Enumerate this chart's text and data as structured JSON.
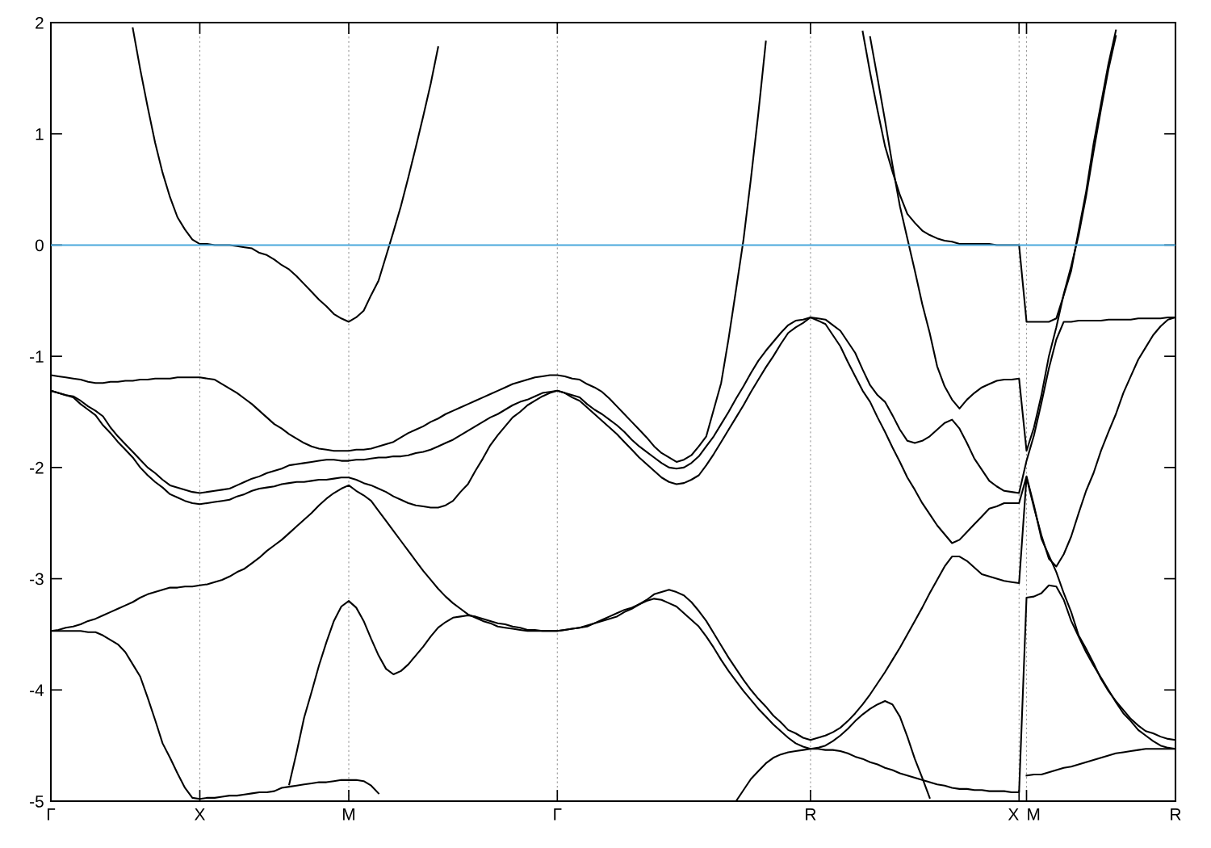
{
  "chart_data": {
    "type": "line",
    "ylim": [
      -5,
      2
    ],
    "categories": [
      "Γ",
      null,
      null,
      null,
      null,
      null,
      null,
      null,
      null,
      null,
      null,
      null,
      null,
      null,
      null,
      null,
      null,
      null,
      null,
      null,
      "X",
      null,
      null,
      null,
      null,
      null,
      null,
      null,
      null,
      null,
      null,
      null,
      null,
      null,
      null,
      null,
      null,
      null,
      null,
      null,
      "M",
      null,
      null,
      null,
      null,
      null,
      null,
      null,
      null,
      null,
      null,
      null,
      null,
      null,
      null,
      null,
      null,
      null,
      null,
      null,
      null,
      null,
      null,
      null,
      null,
      null,
      null,
      null,
      "Γ",
      null,
      null,
      null,
      null,
      null,
      null,
      null,
      null,
      null,
      null,
      null,
      null,
      null,
      null,
      null,
      null,
      null,
      null,
      null,
      null,
      null,
      null,
      null,
      null,
      null,
      null,
      null,
      null,
      null,
      null,
      null,
      null,
      null,
      "R",
      null,
      null,
      null,
      null,
      null,
      null,
      null,
      null,
      null,
      null,
      null,
      null,
      null,
      null,
      null,
      null,
      null,
      null,
      null,
      null,
      null,
      null,
      null,
      null,
      null,
      null,
      null,
      "X",
      "M",
      null,
      null,
      null,
      null,
      null,
      null,
      null,
      null,
      null,
      null,
      null,
      null,
      null,
      null,
      null,
      null,
      null,
      null,
      null,
      "R"
    ],
    "yticks": [
      -5,
      -4,
      -3,
      -2,
      -1,
      0,
      1,
      2
    ],
    "grid": "x",
    "line_style": "solid",
    "ref_lines": [
      {
        "axis": "y",
        "value": 0,
        "color": "#4aa8dc"
      }
    ],
    "series": [
      {
        "color": "#000000",
        "values": [
          null,
          null,
          null,
          null,
          null,
          null,
          null,
          null,
          null,
          null,
          null,
          1.95,
          1.58,
          1.24,
          0.92,
          0.65,
          0.43,
          0.25,
          0.14,
          0.05,
          0.01,
          0.01,
          0.0,
          0.0,
          0.0,
          -0.01,
          -0.02,
          -0.03,
          -0.07,
          -0.09,
          -0.13,
          -0.18,
          -0.22,
          -0.28,
          -0.35,
          -0.42,
          -0.49,
          -0.55,
          -0.62,
          -0.66,
          -0.69,
          -0.65,
          -0.59,
          -0.45,
          -0.32,
          -0.1,
          0.12,
          0.35,
          0.61,
          0.88,
          1.16,
          1.45,
          1.78,
          null,
          null,
          null,
          null,
          null,
          null,
          null,
          null,
          null,
          null,
          null,
          null,
          null,
          null,
          null,
          null,
          null,
          null,
          null,
          null,
          null,
          null,
          null,
          null,
          null,
          null,
          null,
          null,
          null,
          null,
          null,
          null,
          null,
          null,
          null,
          null,
          null,
          null,
          null,
          null,
          null,
          null,
          null,
          null,
          null,
          null,
          null,
          null,
          null,
          null,
          null,
          null,
          null,
          null,
          null,
          null,
          null,
          null,
          null,
          null,
          null,
          null,
          null,
          null,
          null,
          null,
          null,
          null,
          null,
          null,
          null,
          null,
          null,
          null,
          null,
          null,
          null,
          null,
          null,
          null,
          null,
          null,
          null,
          null,
          null,
          null,
          null,
          null,
          null,
          null,
          null,
          null,
          null,
          null,
          null,
          null,
          null,
          null,
          null
        ]
      },
      {
        "color": "#000000",
        "values": [
          -1.17,
          -1.18,
          -1.19,
          -1.2,
          -1.21,
          -1.23,
          -1.24,
          -1.24,
          -1.23,
          -1.23,
          -1.22,
          -1.22,
          -1.21,
          -1.21,
          -1.2,
          -1.2,
          -1.2,
          -1.19,
          -1.19,
          -1.19,
          -1.19,
          -1.2,
          -1.21,
          -1.25,
          -1.29,
          -1.33,
          -1.38,
          -1.43,
          -1.49,
          -1.55,
          -1.61,
          -1.65,
          -1.7,
          -1.74,
          -1.78,
          -1.81,
          -1.83,
          -1.84,
          -1.85,
          -1.85,
          -1.85,
          -1.84,
          -1.84,
          -1.83,
          -1.81,
          -1.79,
          -1.77,
          -1.73,
          -1.69,
          -1.66,
          -1.63,
          -1.59,
          -1.56,
          -1.52,
          -1.49,
          -1.46,
          -1.43,
          -1.4,
          -1.37,
          -1.34,
          -1.31,
          -1.28,
          -1.25,
          -1.23,
          -1.21,
          -1.19,
          -1.18,
          -1.17,
          -1.17,
          -1.18,
          -1.2,
          -1.21,
          -1.25,
          -1.28,
          -1.32,
          -1.38,
          -1.45,
          -1.52,
          -1.59,
          -1.66,
          -1.73,
          -1.81,
          -1.87,
          -1.91,
          -1.95,
          -1.93,
          -1.89,
          -1.81,
          -1.72,
          -1.48,
          -1.24,
          -0.84,
          -0.4,
          0.05,
          0.6,
          1.19,
          1.83,
          null,
          null,
          null,
          null,
          null,
          null,
          null,
          null,
          null,
          null,
          null,
          null,
          null,
          null,
          null,
          null,
          null,
          null,
          null,
          null,
          null,
          null,
          null,
          null,
          null,
          null,
          null,
          null,
          null,
          null,
          null,
          null,
          null,
          null,
          null,
          null,
          null,
          null,
          null,
          null,
          null,
          null,
          null,
          null,
          null,
          null,
          null,
          null,
          null,
          null,
          null,
          null,
          null,
          null,
          null
        ]
      },
      {
        "color": "#000000",
        "values": [
          -1.31,
          -1.33,
          -1.35,
          -1.36,
          -1.4,
          -1.45,
          -1.49,
          -1.54,
          -1.64,
          -1.72,
          -1.79,
          -1.86,
          -1.93,
          -2.0,
          -2.05,
          -2.11,
          -2.16,
          -2.18,
          -2.2,
          -2.22,
          -2.23,
          -2.22,
          -2.21,
          -2.2,
          -2.19,
          -2.16,
          -2.13,
          -2.1,
          -2.08,
          -2.05,
          -2.03,
          -2.01,
          -1.98,
          -1.97,
          -1.96,
          -1.95,
          -1.94,
          -1.93,
          -1.93,
          -1.94,
          -1.94,
          -1.93,
          -1.93,
          -1.92,
          -1.91,
          -1.91,
          -1.9,
          -1.9,
          -1.89,
          -1.87,
          -1.86,
          -1.84,
          -1.81,
          -1.78,
          -1.75,
          -1.71,
          -1.67,
          -1.63,
          -1.59,
          -1.55,
          -1.52,
          -1.48,
          -1.44,
          -1.41,
          -1.39,
          -1.36,
          -1.33,
          -1.32,
          -1.31,
          -1.33,
          -1.35,
          -1.37,
          -1.43,
          -1.48,
          -1.52,
          -1.57,
          -1.62,
          -1.68,
          -1.75,
          -1.81,
          -1.86,
          -1.91,
          -1.96,
          -2.0,
          -2.01,
          -2.0,
          -1.96,
          -1.9,
          -1.81,
          -1.72,
          -1.61,
          -1.5,
          -1.38,
          -1.27,
          -1.15,
          -1.04,
          -0.95,
          -0.87,
          -0.79,
          -0.72,
          -0.68,
          -0.67,
          -0.65,
          -0.66,
          -0.67,
          -0.72,
          -0.77,
          -0.87,
          -0.97,
          -1.12,
          -1.26,
          -1.35,
          -1.41,
          -1.53,
          -1.66,
          -1.76,
          -1.78,
          -1.76,
          -1.72,
          -1.66,
          -1.6,
          -1.57,
          -1.65,
          -1.78,
          -1.92,
          -2.02,
          -2.12,
          -2.17,
          -2.21,
          -2.22,
          -2.23,
          -1.94,
          -1.71,
          -1.42,
          -1.11,
          -0.85,
          -0.69,
          -0.69,
          -0.68,
          -0.68,
          -0.68,
          -0.68,
          -0.67,
          -0.67,
          -0.67,
          -0.67,
          -0.66,
          -0.66,
          -0.66,
          -0.66,
          -0.65,
          -0.65
        ]
      },
      {
        "color": "#000000",
        "values": [
          -1.31,
          -1.33,
          -1.35,
          -1.37,
          -1.43,
          -1.48,
          -1.53,
          -1.62,
          -1.69,
          -1.77,
          -1.84,
          -1.91,
          -2.0,
          -2.07,
          -2.13,
          -2.18,
          -2.24,
          -2.27,
          -2.3,
          -2.32,
          -2.33,
          -2.32,
          -2.31,
          -2.3,
          -2.29,
          -2.26,
          -2.24,
          -2.21,
          -2.19,
          -2.18,
          -2.17,
          -2.15,
          -2.14,
          -2.13,
          -2.13,
          -2.12,
          -2.11,
          -2.11,
          -2.1,
          -2.09,
          -2.09,
          -2.11,
          -2.14,
          -2.16,
          -2.19,
          -2.22,
          -2.26,
          -2.29,
          -2.32,
          -2.34,
          -2.35,
          -2.36,
          -2.36,
          -2.34,
          -2.3,
          -2.22,
          -2.15,
          -2.03,
          -1.92,
          -1.8,
          -1.71,
          -1.63,
          -1.55,
          -1.5,
          -1.44,
          -1.4,
          -1.36,
          -1.33,
          -1.31,
          -1.33,
          -1.37,
          -1.4,
          -1.46,
          -1.52,
          -1.58,
          -1.64,
          -1.7,
          -1.77,
          -1.84,
          -1.91,
          -1.97,
          -2.03,
          -2.09,
          -2.13,
          -2.15,
          -2.14,
          -2.11,
          -2.07,
          -1.98,
          -1.88,
          -1.77,
          -1.66,
          -1.55,
          -1.44,
          -1.32,
          -1.21,
          -1.1,
          -1.0,
          -0.89,
          -0.79,
          -0.74,
          -0.7,
          -0.65,
          -0.68,
          -0.71,
          -0.81,
          -0.91,
          -1.05,
          -1.18,
          -1.31,
          -1.41,
          -1.55,
          -1.68,
          -1.82,
          -1.95,
          -2.09,
          -2.2,
          -2.32,
          -2.42,
          -2.52,
          -2.6,
          -2.68,
          -2.65,
          -2.58,
          -2.51,
          -2.44,
          -2.37,
          -2.35,
          -2.32,
          -2.32,
          -2.32,
          -2.08,
          -2.34,
          -2.64,
          -2.79,
          -2.94,
          -3.13,
          -3.3,
          -3.51,
          -3.63,
          -3.76,
          -3.9,
          -4.01,
          -4.1,
          -4.18,
          -4.26,
          -4.32,
          -4.37,
          -4.39,
          -4.42,
          -4.44,
          -4.45
        ]
      },
      {
        "color": "#000000",
        "values": [
          null,
          null,
          null,
          null,
          null,
          null,
          null,
          null,
          null,
          null,
          null,
          null,
          null,
          null,
          null,
          null,
          null,
          null,
          null,
          null,
          null,
          null,
          null,
          null,
          null,
          null,
          null,
          null,
          null,
          null,
          null,
          null,
          null,
          null,
          null,
          null,
          null,
          null,
          null,
          null,
          null,
          null,
          null,
          null,
          null,
          null,
          null,
          null,
          null,
          null,
          null,
          null,
          null,
          null,
          null,
          null,
          null,
          null,
          null,
          null,
          null,
          null,
          null,
          null,
          null,
          null,
          null,
          null,
          null,
          null,
          null,
          null,
          null,
          null,
          null,
          null,
          null,
          null,
          null,
          null,
          null,
          null,
          null,
          null,
          null,
          null,
          null,
          null,
          null,
          null,
          null,
          null,
          null,
          null,
          null,
          null,
          null,
          null,
          null,
          null,
          null,
          null,
          null,
          null,
          null,
          null,
          null,
          null,
          null,
          null,
          1.87,
          1.5,
          1.12,
          0.72,
          0.35,
          0.06,
          -0.23,
          -0.53,
          -0.79,
          -1.09,
          -1.27,
          -1.39,
          -1.47,
          -1.39,
          -1.33,
          -1.28,
          -1.25,
          -1.22,
          -1.21,
          -1.21,
          -1.2,
          -1.85,
          -1.64,
          -1.35,
          -1.0,
          -0.74,
          -0.44,
          -0.19,
          0.09,
          0.44,
          0.84,
          1.22,
          1.58,
          1.88,
          null,
          null,
          null,
          null,
          null,
          null,
          null,
          null
        ]
      },
      {
        "color": "#000000",
        "values": [
          null,
          null,
          null,
          null,
          null,
          null,
          null,
          null,
          null,
          null,
          null,
          null,
          null,
          null,
          null,
          null,
          null,
          null,
          null,
          null,
          null,
          null,
          null,
          null,
          null,
          null,
          null,
          null,
          null,
          null,
          null,
          null,
          null,
          null,
          null,
          null,
          null,
          null,
          null,
          null,
          null,
          null,
          null,
          null,
          null,
          null,
          null,
          null,
          null,
          null,
          null,
          null,
          null,
          null,
          null,
          null,
          null,
          null,
          null,
          null,
          null,
          null,
          null,
          null,
          null,
          null,
          null,
          null,
          null,
          null,
          null,
          null,
          null,
          null,
          null,
          null,
          null,
          null,
          null,
          null,
          null,
          null,
          null,
          null,
          null,
          null,
          null,
          null,
          null,
          null,
          null,
          null,
          null,
          null,
          null,
          null,
          null,
          null,
          null,
          null,
          null,
          null,
          null,
          null,
          null,
          null,
          null,
          null,
          null,
          1.92,
          1.55,
          1.21,
          0.89,
          0.66,
          0.45,
          0.28,
          0.2,
          0.13,
          0.09,
          0.06,
          0.04,
          0.03,
          0.01,
          0.01,
          0.01,
          0.01,
          0.01,
          0.0,
          0.0,
          0.0,
          0.0,
          -0.69,
          -0.69,
          -0.69,
          -0.69,
          -0.66,
          -0.45,
          -0.23,
          0.13,
          0.48,
          0.91,
          1.27,
          1.63,
          1.93,
          null,
          null,
          null,
          null,
          null,
          null,
          null,
          null
        ]
      },
      {
        "color": "#000000",
        "values": [
          -3.47,
          -3.46,
          -3.44,
          -3.43,
          -3.41,
          -3.38,
          -3.36,
          -3.33,
          -3.3,
          -3.27,
          -3.24,
          -3.21,
          -3.17,
          -3.14,
          -3.12,
          -3.1,
          -3.08,
          -3.08,
          -3.07,
          -3.07,
          -3.06,
          -3.05,
          -3.03,
          -3.01,
          -2.98,
          -2.94,
          -2.91,
          -2.86,
          -2.81,
          -2.75,
          -2.7,
          -2.65,
          -2.59,
          -2.53,
          -2.47,
          -2.41,
          -2.34,
          -2.28,
          -2.23,
          -2.19,
          -2.16,
          -2.21,
          -2.25,
          -2.3,
          -2.39,
          -2.48,
          -2.57,
          -2.66,
          -2.75,
          -2.84,
          -2.93,
          -3.01,
          -3.09,
          -3.16,
          -3.22,
          -3.27,
          -3.32,
          -3.35,
          -3.38,
          -3.4,
          -3.43,
          -3.44,
          -3.45,
          -3.46,
          -3.47,
          -3.47,
          -3.47,
          -3.47,
          -3.47,
          -3.46,
          -3.45,
          -3.44,
          -3.42,
          -3.4,
          -3.38,
          -3.36,
          -3.34,
          -3.3,
          -3.27,
          -3.23,
          -3.19,
          -3.14,
          -3.12,
          -3.1,
          -3.12,
          -3.15,
          -3.21,
          -3.29,
          -3.38,
          -3.49,
          -3.6,
          -3.71,
          -3.81,
          -3.91,
          -4.0,
          -4.08,
          -4.15,
          -4.23,
          -4.29,
          -4.36,
          -4.39,
          -4.43,
          -4.45,
          -4.43,
          -4.41,
          -4.38,
          -4.34,
          -4.28,
          -4.21,
          -4.13,
          -4.04,
          -3.94,
          -3.84,
          -3.73,
          -3.62,
          -3.5,
          -3.38,
          -3.26,
          -3.13,
          -3.01,
          -2.89,
          -2.8,
          -2.8,
          -2.84,
          -2.9,
          -2.96,
          -2.98,
          -3.0,
          -3.02,
          -3.03,
          -3.04,
          -2.09,
          -2.36,
          -2.61,
          -2.82,
          -2.89,
          -2.78,
          -2.62,
          -2.41,
          -2.21,
          -2.05,
          -1.85,
          -1.68,
          -1.52,
          -1.33,
          -1.18,
          -1.03,
          -0.92,
          -0.81,
          -0.73,
          -0.67,
          -0.65
        ]
      },
      {
        "color": "#000000",
        "values": [
          -3.47,
          -3.47,
          -3.47,
          -3.47,
          -3.47,
          -3.48,
          -3.48,
          -3.51,
          -3.55,
          -3.59,
          -3.66,
          -3.77,
          -3.88,
          -4.07,
          -4.27,
          -4.48,
          -4.61,
          -4.75,
          -4.88,
          -4.97,
          -4.98,
          -4.97,
          -4.97,
          -4.96,
          -4.95,
          -4.95,
          -4.94,
          -4.93,
          -4.92,
          -4.92,
          -4.91,
          -4.88,
          -4.87,
          -4.86,
          -4.85,
          -4.84,
          -4.83,
          -4.83,
          -4.82,
          -4.81,
          -4.81,
          -4.81,
          -4.82,
          -4.86,
          -4.93,
          null,
          null,
          null,
          null,
          null,
          null,
          null,
          null,
          null,
          null,
          null,
          null,
          null,
          null,
          null,
          null,
          null,
          null,
          null,
          null,
          null,
          null,
          null,
          null,
          null,
          null,
          null,
          null,
          null,
          null,
          null,
          null,
          null,
          null,
          null,
          null,
          null,
          null,
          null,
          null,
          null,
          null,
          null,
          null,
          null,
          null,
          null,
          null,
          null,
          null,
          null,
          null,
          null,
          null,
          null,
          null,
          null,
          null,
          null,
          null,
          null,
          null,
          null,
          null,
          null,
          null,
          null,
          null,
          null,
          null,
          null,
          null,
          null,
          null,
          null,
          null,
          null,
          null,
          null,
          null,
          null,
          null,
          null,
          null,
          null,
          null,
          null,
          null,
          null,
          null,
          null,
          null,
          null,
          null,
          null,
          null,
          null,
          null,
          null,
          null,
          null,
          null,
          null,
          null,
          null,
          null,
          null
        ]
      },
      {
        "color": "#000000",
        "values": [
          null,
          null,
          null,
          null,
          null,
          null,
          null,
          null,
          null,
          null,
          null,
          null,
          null,
          null,
          null,
          null,
          null,
          null,
          null,
          null,
          null,
          null,
          null,
          null,
          null,
          null,
          null,
          null,
          null,
          null,
          null,
          null,
          -4.85,
          -4.56,
          -4.25,
          -4.02,
          -3.78,
          -3.57,
          -3.38,
          -3.25,
          -3.2,
          -3.26,
          -3.38,
          -3.54,
          -3.69,
          -3.81,
          -3.86,
          -3.83,
          -3.77,
          -3.69,
          -3.61,
          -3.52,
          -3.44,
          -3.39,
          -3.35,
          -3.34,
          -3.33,
          -3.34,
          -3.36,
          -3.38,
          -3.4,
          -3.41,
          -3.43,
          -3.44,
          -3.46,
          -3.46,
          -3.47,
          -3.47,
          -3.47,
          -3.46,
          -3.45,
          -3.44,
          -3.43,
          -3.4,
          -3.37,
          -3.34,
          -3.31,
          -3.28,
          -3.26,
          -3.23,
          -3.2,
          -3.18,
          -3.19,
          -3.22,
          -3.25,
          -3.31,
          -3.37,
          -3.43,
          -3.52,
          -3.62,
          -3.73,
          -3.83,
          -3.92,
          -4.01,
          -4.09,
          -4.17,
          -4.24,
          -4.31,
          -4.37,
          -4.43,
          -4.48,
          -4.51,
          -4.53,
          -4.52,
          -4.5,
          -4.46,
          -4.41,
          -4.35,
          -4.28,
          -4.22,
          -4.17,
          -4.13,
          -4.1,
          -4.13,
          -4.24,
          -4.42,
          -4.62,
          -4.79,
          -4.97,
          null,
          null,
          null,
          null,
          null,
          null,
          null,
          null,
          null,
          null,
          null,
          null,
          null,
          null,
          null,
          null,
          null,
          null,
          null,
          null,
          null,
          null,
          null,
          null,
          null,
          null,
          null,
          null,
          null,
          null,
          null,
          null,
          null
        ]
      },
      {
        "color": "#000000",
        "values": [
          null,
          null,
          null,
          null,
          null,
          null,
          null,
          null,
          null,
          null,
          null,
          null,
          null,
          null,
          null,
          null,
          null,
          null,
          null,
          null,
          null,
          null,
          null,
          null,
          null,
          null,
          null,
          null,
          null,
          null,
          null,
          null,
          null,
          null,
          null,
          null,
          null,
          null,
          null,
          null,
          null,
          null,
          null,
          null,
          null,
          null,
          null,
          null,
          null,
          null,
          null,
          null,
          null,
          null,
          null,
          null,
          null,
          null,
          null,
          null,
          null,
          null,
          null,
          null,
          null,
          null,
          null,
          null,
          null,
          null,
          null,
          null,
          null,
          null,
          null,
          null,
          null,
          null,
          null,
          null,
          null,
          null,
          null,
          null,
          null,
          null,
          null,
          null,
          null,
          null,
          null,
          null,
          -5.0,
          -4.9,
          -4.8,
          -4.73,
          -4.66,
          -4.61,
          -4.58,
          -4.56,
          -4.55,
          -4.54,
          -4.53,
          -4.53,
          -4.54,
          -4.54,
          -4.55,
          -4.57,
          -4.6,
          -4.62,
          -4.65,
          -4.67,
          -4.7,
          -4.72,
          -4.75,
          -4.77,
          -4.79,
          -4.81,
          -4.83,
          -4.85,
          -4.86,
          -4.88,
          -4.89,
          -4.89,
          -4.9,
          -4.9,
          -4.91,
          -4.91,
          -4.91,
          -4.92,
          -4.92,
          -3.17,
          -3.16,
          -3.13,
          -3.06,
          -3.07,
          -3.19,
          -3.38,
          -3.52,
          -3.66,
          -3.78,
          -3.89,
          -4.0,
          -4.11,
          -4.21,
          -4.28,
          -4.36,
          -4.41,
          -4.46,
          -4.5,
          -4.52,
          -4.53
        ]
      },
      {
        "color": "#000000",
        "values": [
          null,
          null,
          null,
          null,
          null,
          null,
          null,
          null,
          null,
          null,
          null,
          null,
          null,
          null,
          null,
          null,
          null,
          null,
          null,
          null,
          null,
          null,
          null,
          null,
          null,
          null,
          null,
          null,
          null,
          null,
          null,
          null,
          null,
          null,
          null,
          null,
          null,
          null,
          null,
          null,
          null,
          null,
          null,
          null,
          null,
          null,
          null,
          null,
          null,
          null,
          null,
          null,
          null,
          null,
          null,
          null,
          null,
          null,
          null,
          null,
          null,
          null,
          null,
          null,
          null,
          null,
          null,
          null,
          null,
          null,
          null,
          null,
          null,
          null,
          null,
          null,
          null,
          null,
          null,
          null,
          null,
          null,
          null,
          null,
          null,
          null,
          null,
          null,
          null,
          null,
          null,
          null,
          null,
          null,
          null,
          null,
          null,
          null,
          null,
          null,
          null,
          null,
          null,
          null,
          null,
          null,
          null,
          null,
          null,
          null,
          null,
          null,
          null,
          null,
          null,
          null,
          null,
          null,
          null,
          null,
          null,
          null,
          null,
          null,
          null,
          null,
          null,
          null,
          null,
          null,
          null,
          -4.77,
          -4.76,
          -4.76,
          -4.74,
          -4.72,
          -4.7,
          -4.69,
          -4.67,
          -4.65,
          -4.63,
          -4.61,
          -4.59,
          -4.57,
          -4.56,
          -4.55,
          -4.54,
          -4.53,
          -4.53,
          -4.53,
          -4.53,
          -4.53
        ]
      }
    ]
  }
}
